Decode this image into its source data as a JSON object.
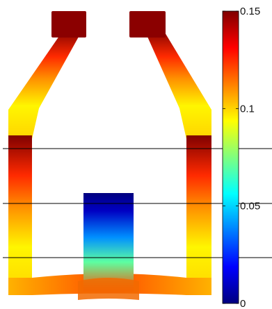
{
  "chart_data": {
    "type": "heatmap",
    "title": "",
    "colorbar": {
      "colormap": "jet",
      "range": [
        0,
        0.15
      ],
      "ticks": [
        0,
        0.05,
        0.1,
        0.15
      ],
      "tick_labels": [
        "0",
        "0.05",
        "0.1",
        "0.15"
      ],
      "stops": [
        "#00007f",
        "#0000ff",
        "#007fff",
        "#00ffff",
        "#7fff7f",
        "#ffff00",
        "#ff7f00",
        "#ff0000",
        "#7f0000"
      ]
    },
    "field": {
      "description_values": {
        "top_blocks": 0.15,
        "upper_arms": 0.125,
        "shoulders": 0.11,
        "side_walls": 0.095,
        "bottom_bar_sides": 0.105,
        "bottom_bar_center": 0.12,
        "center_column_top": 0.0,
        "center_column_bottom": 0.12
      }
    },
    "horizontal_lines": 3,
    "grid": false,
    "legend": "none"
  }
}
